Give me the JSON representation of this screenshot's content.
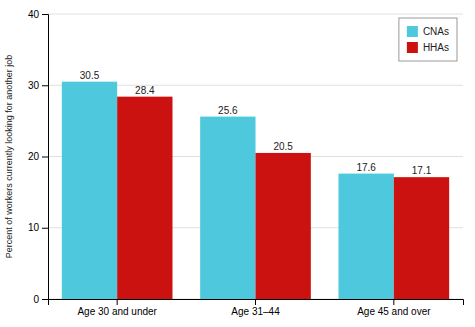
{
  "chart_data": {
    "type": "bar",
    "categories": [
      "Age 30 and under",
      "Age 31–44",
      "Age 45 and over"
    ],
    "series": [
      {
        "name": "CNAs",
        "color": "#4DC8DC",
        "values": [
          30.5,
          25.6,
          17.6
        ]
      },
      {
        "name": "HHAs",
        "color": "#CC1111",
        "values": [
          28.4,
          20.5,
          17.1
        ]
      }
    ],
    "ylabel": "Percent of workers currently looking for another job",
    "ylim": [
      0,
      40
    ],
    "yticks": [
      0,
      10,
      20,
      30,
      40
    ],
    "grid": true,
    "legend": "upper-right",
    "data_labels": true
  }
}
